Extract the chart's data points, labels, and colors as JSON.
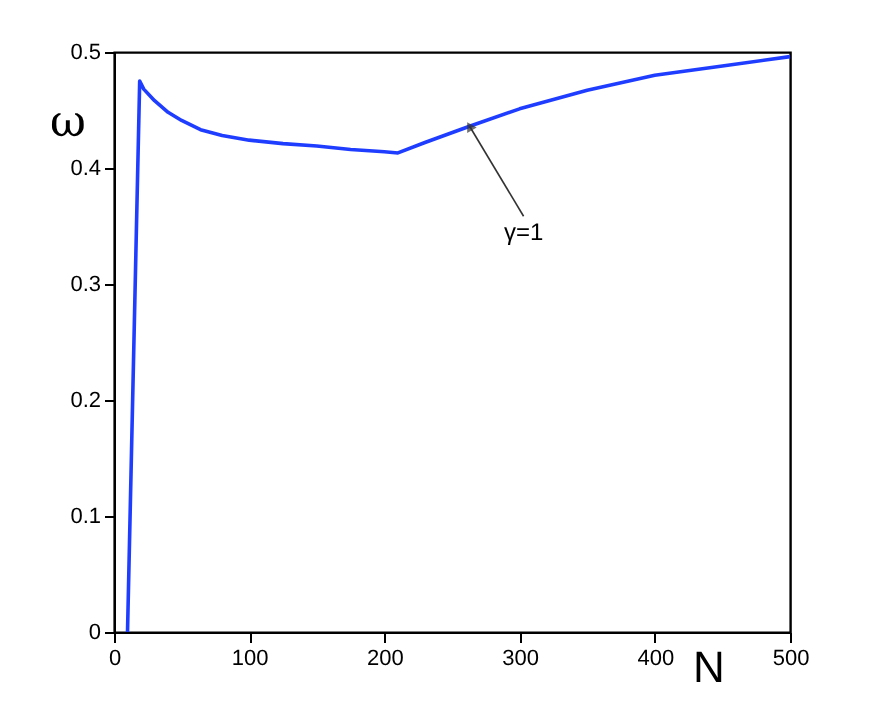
{
  "chart_data": {
    "type": "line",
    "xlabel": "N",
    "ylabel": "ω",
    "x": [
      10,
      19,
      22,
      30,
      40,
      50,
      64,
      80,
      100,
      125,
      150,
      175,
      200,
      210,
      230,
      263,
      300,
      350,
      400,
      450,
      500
    ],
    "series": [
      {
        "color": "#1f3dff",
        "values": [
          0,
          0.475,
          0.468,
          0.458,
          0.448,
          0.441,
          0.433,
          0.428,
          0.424,
          0.421,
          0.419,
          0.416,
          0.414,
          0.413,
          0.422,
          0.436,
          0.451,
          0.467,
          0.48,
          0.488,
          0.496
        ]
      }
    ],
    "xlim": [
      0,
      500
    ],
    "xticks": [
      0,
      100,
      200,
      300,
      400,
      500
    ],
    "ylim": [
      0,
      0.5
    ],
    "yticks": [
      0,
      0.1,
      0.2,
      0.3,
      0.4,
      0.5
    ],
    "annotations": [
      {
        "text": "γ=1",
        "x": 263,
        "y": 0.436
      }
    ],
    "grid": false,
    "line_style": "solid",
    "marker": "none"
  }
}
